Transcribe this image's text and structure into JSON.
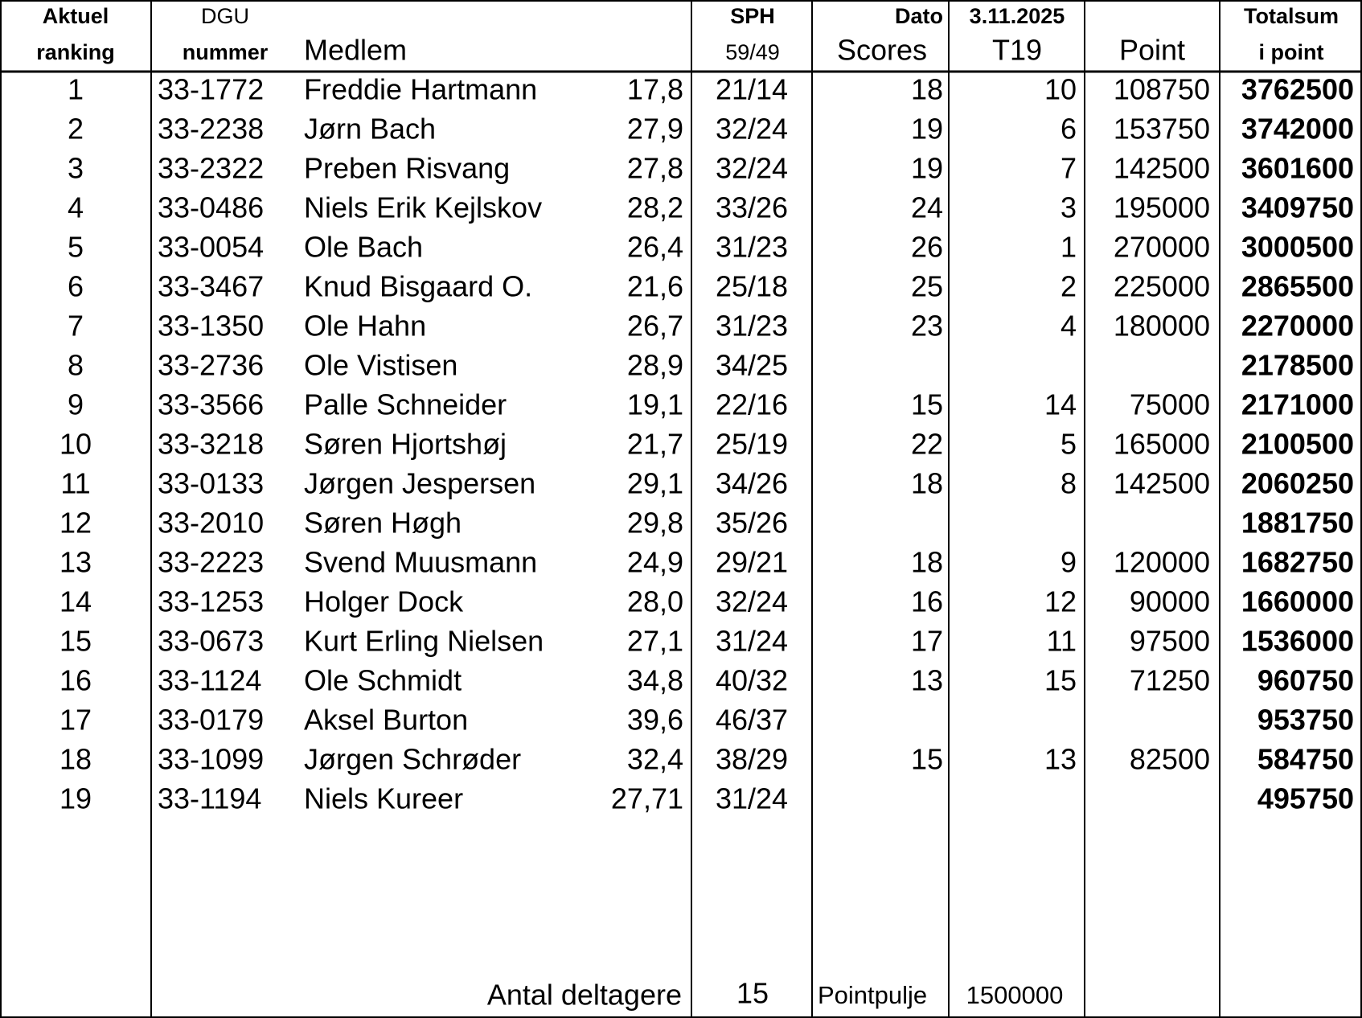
{
  "header": {
    "rank": [
      "Aktuel",
      "ranking"
    ],
    "dgu": [
      "DGU",
      "nummer"
    ],
    "member": "Medlem",
    "sph": [
      "SPH",
      "59/49"
    ],
    "scores": [
      "Dato",
      "Scores"
    ],
    "t19": [
      "3.11.2025",
      "T19"
    ],
    "point": "Point",
    "total": [
      "Totalsum",
      "i point"
    ]
  },
  "table": {
    "rows": [
      [
        "1",
        "33-1772",
        "Freddie Hartmann",
        "17,8",
        "21/14",
        "18",
        "10",
        "108750",
        "3762500"
      ],
      [
        "2",
        "33-2238",
        "Jørn Bach",
        "27,9",
        "32/24",
        "19",
        "6",
        "153750",
        "3742000"
      ],
      [
        "3",
        "33-2322",
        "Preben Risvang",
        "27,8",
        "32/24",
        "19",
        "7",
        "142500",
        "3601600"
      ],
      [
        "4",
        "33-0486",
        "Niels Erik Kejlskov",
        "28,2",
        "33/26",
        "24",
        "3",
        "195000",
        "3409750"
      ],
      [
        "5",
        "33-0054",
        "Ole Bach",
        "26,4",
        "31/23",
        "26",
        "1",
        "270000",
        "3000500"
      ],
      [
        "6",
        "33-3467",
        "Knud Bisgaard O.",
        "21,6",
        "25/18",
        "25",
        "2",
        "225000",
        "2865500"
      ],
      [
        "7",
        "33-1350",
        "Ole Hahn",
        "26,7",
        "31/23",
        "23",
        "4",
        "180000",
        "2270000"
      ],
      [
        "8",
        "33-2736",
        "Ole Vistisen",
        "28,9",
        "34/25",
        null,
        null,
        null,
        "2178500"
      ],
      [
        "9",
        "33-3566",
        "Palle Schneider",
        "19,1",
        "22/16",
        "15",
        "14",
        "75000",
        "2171000"
      ],
      [
        "10",
        "33-3218",
        "Søren Hjortshøj",
        "21,7",
        "25/19",
        "22",
        "5",
        "165000",
        "2100500"
      ],
      [
        "11",
        "33-0133",
        "Jørgen Jespersen",
        "29,1",
        "34/26",
        "18",
        "8",
        "142500",
        "2060250"
      ],
      [
        "12",
        "33-2010",
        "Søren Høgh",
        "29,8",
        "35/26",
        null,
        null,
        null,
        "1881750"
      ],
      [
        "13",
        "33-2223",
        "Svend Muusmann",
        "24,9",
        "29/21",
        "18",
        "9",
        "120000",
        "1682750"
      ],
      [
        "14",
        "33-1253",
        "Holger Dock",
        "28,0",
        "32/24",
        "16",
        "12",
        "90000",
        "1660000"
      ],
      [
        "15",
        "33-0673",
        "Kurt Erling Nielsen",
        "27,1",
        "31/24",
        "17",
        "11",
        "97500",
        "1536000"
      ],
      [
        "16",
        "33-1124",
        "Ole Schmidt",
        "34,8",
        "40/32",
        "13",
        "15",
        "71250",
        "960750"
      ],
      [
        "17",
        "33-0179",
        "Aksel Burton",
        "39,6",
        "46/37",
        null,
        null,
        null,
        "953750"
      ],
      [
        "18",
        "33-1099",
        "Jørgen Schrøder",
        "32,4",
        "38/29",
        "15",
        "13",
        "82500",
        "584750"
      ],
      [
        "19",
        "33-1194",
        "Niels Kureer",
        "27,71",
        "31/24",
        null,
        null,
        null,
        "495750"
      ]
    ]
  },
  "footer": {
    "participants_label": "Antal deltagere",
    "participants": "15",
    "pool_label": "Pointpulje",
    "pool": "1500000"
  }
}
